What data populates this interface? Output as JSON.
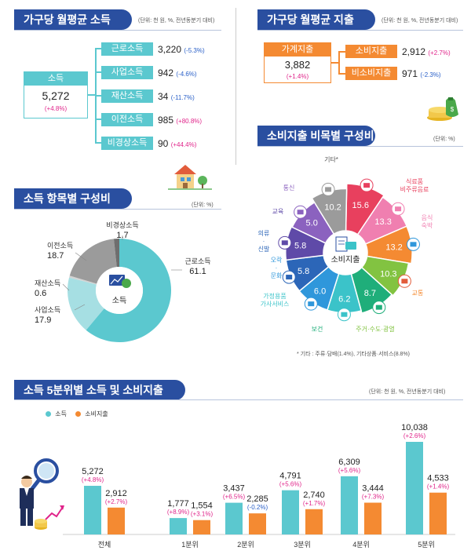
{
  "income": {
    "title": "가구당 월평균 소득",
    "unit": "(단위: 천 원, %, 전년동분기 대비)",
    "total": {
      "label": "소득",
      "value": "5,272",
      "change": "(+4.8%)"
    },
    "items": [
      {
        "label": "근로소득",
        "value": "3,220",
        "change": "(-5.3%)",
        "sign": "neg"
      },
      {
        "label": "사업소득",
        "value": "942",
        "change": "(-4.6%)",
        "sign": "neg"
      },
      {
        "label": "재산소득",
        "value": "34",
        "change": "(-11.7%)",
        "sign": "neg"
      },
      {
        "label": "이전소득",
        "value": "985",
        "change": "(+80.8%)",
        "sign": "pos"
      },
      {
        "label": "비경상소득",
        "value": "90",
        "change": "(+44.4%)",
        "sign": "pos"
      }
    ]
  },
  "expenditure": {
    "title": "가구당 월평균 지출",
    "unit": "(단위: 천 원, %, 전년동분기 대비)",
    "total": {
      "label": "가계지출",
      "value": "3,882",
      "change": "(+1.4%)"
    },
    "items": [
      {
        "label": "소비지출",
        "value": "2,912",
        "change": "(+2.7%)",
        "sign": "pos"
      },
      {
        "label": "비소비지출",
        "value": "971",
        "change": "(-2.3%)",
        "sign": "neg"
      }
    ]
  },
  "chart_data": [
    {
      "type": "pie",
      "title": "소득 항목별 구성비",
      "unit": "(단위: %)",
      "center_label": "소득",
      "categories": [
        "근로소득",
        "사업소득",
        "재산소득",
        "이전소득",
        "비경상소득"
      ],
      "values": [
        61.1,
        17.9,
        0.6,
        18.7,
        1.7
      ],
      "value_labels": [
        "61.1",
        "17.9",
        "0.6",
        "18.7",
        "1.7"
      ],
      "colors": [
        "#5bc8cf",
        "#a6dfe3",
        "#d3d3d3",
        "#9b9b9b",
        "#6e6e6e"
      ]
    },
    {
      "type": "pie",
      "title": "소비지출 비목별 구성비",
      "unit": "(단위: %)",
      "center_label": "소비지출",
      "categories": [
        "식료품·비주류음료",
        "음식·숙박",
        "교통",
        "주거·수도·광열",
        "보건",
        "가정용품·가사서비스",
        "오락·문화",
        "의류·신발",
        "교육",
        "통신",
        "기타*"
      ],
      "values": [
        15.6,
        13.3,
        13.2,
        10.3,
        8.7,
        6.2,
        6.0,
        5.8,
        5.8,
        5.0,
        10.2
      ],
      "value_labels": [
        "15.6",
        "13.3",
        "13.2",
        "10.3",
        "8.7",
        "6.2",
        "6.0",
        "5.8",
        "5.8",
        "5.0",
        "10.2"
      ],
      "outer_labels": [
        "식료품\n비주류음료",
        "음식\n숙박",
        "교통",
        "주거·수도·광열",
        "보건",
        "가정용품\n가사서비스",
        "오락\n·\n문화",
        "의류\n·\n신발",
        "교육",
        "통신",
        "기타*"
      ],
      "colors": [
        "#e8405e",
        "#f07fb0",
        "#f48a32",
        "#82c341",
        "#1fae7a",
        "#3bc3c9",
        "#2f97db",
        "#2c66b8",
        "#5f4aa8",
        "#8b62bf",
        "#9b9b9b"
      ],
      "footnote": "* 기타 : 주류·담배(1.4%), 기타상품·서비스(8.8%)"
    },
    {
      "type": "bar",
      "title": "소득 5분위별 소득 및 소비지출",
      "unit": "(단위: 천 원, %, 전년동분기 대비)",
      "categories": [
        "전체",
        "1분위",
        "2분위",
        "3분위",
        "4분위",
        "5분위"
      ],
      "series": [
        {
          "name": "소득",
          "values": [
            5272,
            1777,
            3437,
            4791,
            6309,
            10038
          ],
          "value_labels": [
            "5,272",
            "1,777",
            "3,437",
            "4,791",
            "6,309",
            "10,038"
          ],
          "changes": [
            "(+4.8%)",
            "(+8.9%)",
            "(+6.5%)",
            "(+5.6%)",
            "(+5.6%)",
            "(+2.6%)"
          ],
          "color": "#5bc8cf"
        },
        {
          "name": "소비지출",
          "values": [
            2912,
            1554,
            2285,
            2740,
            3444,
            4533
          ],
          "value_labels": [
            "2,912",
            "1,554",
            "2,285",
            "2,740",
            "3,444",
            "4,533"
          ],
          "changes": [
            "(+2.7%)",
            "(+3.1%)",
            "(-0.2%)",
            "(+1.7%)",
            "(+7.3%)",
            "(+1.4%)"
          ],
          "color": "#f48a32"
        }
      ],
      "ylim": [
        0,
        10038
      ]
    }
  ]
}
